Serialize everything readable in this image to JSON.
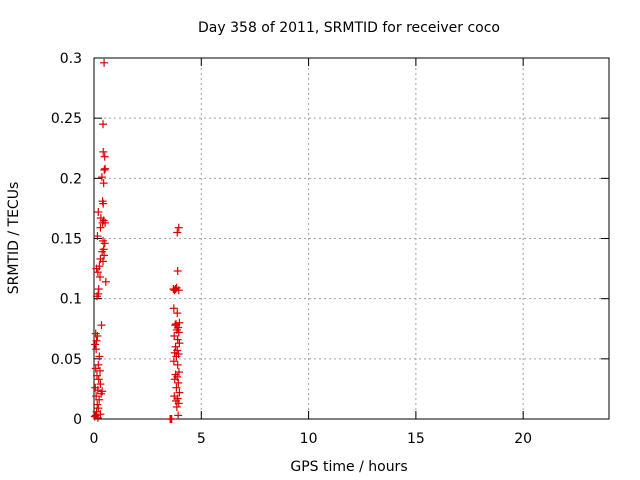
{
  "chart_data": {
    "type": "scatter",
    "title": "Day 358 of 2011, SRMTID for receiver coco",
    "xlabel": "GPS time / hours",
    "ylabel": "SRMTID / TECUs",
    "xlim": [
      0,
      24
    ],
    "ylim": [
      0,
      0.3
    ],
    "xticks": [
      0,
      5,
      10,
      15,
      20
    ],
    "xtick_labels": [
      "0",
      "5",
      "10",
      "15",
      "20"
    ],
    "yticks": [
      0,
      0.05,
      0.1,
      0.15,
      0.2,
      0.25,
      0.3
    ],
    "ytick_labels": [
      "0",
      "0.05",
      "0.1",
      "0.15",
      "0.2",
      "0.25",
      "0.3"
    ],
    "grid": true,
    "marker": "+",
    "color": "#dd0000",
    "series": [
      {
        "name": "SRMTID",
        "points": [
          [
            0.47,
            0.296
          ],
          [
            0.42,
            0.245
          ],
          [
            0.43,
            0.222
          ],
          [
            0.5,
            0.218
          ],
          [
            0.52,
            0.208
          ],
          [
            0.48,
            0.207
          ],
          [
            0.37,
            0.201
          ],
          [
            0.45,
            0.196
          ],
          [
            0.4,
            0.181
          ],
          [
            0.43,
            0.179
          ],
          [
            0.2,
            0.172
          ],
          [
            0.32,
            0.167
          ],
          [
            0.45,
            0.165
          ],
          [
            0.52,
            0.163
          ],
          [
            0.4,
            0.163
          ],
          [
            0.3,
            0.159
          ],
          [
            0.16,
            0.152
          ],
          [
            0.42,
            0.148
          ],
          [
            0.5,
            0.146
          ],
          [
            0.45,
            0.141
          ],
          [
            0.38,
            0.139
          ],
          [
            0.47,
            0.136
          ],
          [
            0.3,
            0.133
          ],
          [
            0.42,
            0.131
          ],
          [
            0.25,
            0.127
          ],
          [
            0.12,
            0.125
          ],
          [
            0.18,
            0.122
          ],
          [
            0.28,
            0.118
          ],
          [
            0.55,
            0.114
          ],
          [
            0.22,
            0.108
          ],
          [
            0.2,
            0.104
          ],
          [
            0.14,
            0.102
          ],
          [
            0.35,
            0.078
          ],
          [
            0.08,
            0.071
          ],
          [
            0.16,
            0.069
          ],
          [
            0.12,
            0.065
          ],
          [
            0.05,
            0.062
          ],
          [
            0.1,
            0.058
          ],
          [
            0.25,
            0.052
          ],
          [
            0.2,
            0.045
          ],
          [
            0.08,
            0.042
          ],
          [
            0.28,
            0.04
          ],
          [
            0.14,
            0.036
          ],
          [
            0.22,
            0.033
          ],
          [
            0.3,
            0.029
          ],
          [
            0.06,
            0.026
          ],
          [
            0.18,
            0.024
          ],
          [
            0.38,
            0.023
          ],
          [
            0.33,
            0.021
          ],
          [
            0.1,
            0.019
          ],
          [
            0.24,
            0.016
          ],
          [
            0.15,
            0.012
          ],
          [
            0.2,
            0.009
          ],
          [
            0.12,
            0.006
          ],
          [
            0.3,
            0.004
          ],
          [
            0.08,
            0.003
          ],
          [
            0.18,
            0.001
          ],
          [
            0.04,
            0.002
          ],
          [
            3.95,
            0.159
          ],
          [
            3.88,
            0.155
          ],
          [
            3.9,
            0.123
          ],
          [
            3.7,
            0.108
          ],
          [
            3.75,
            0.107
          ],
          [
            3.85,
            0.109
          ],
          [
            3.95,
            0.107
          ],
          [
            3.8,
            0.108
          ],
          [
            3.72,
            0.092
          ],
          [
            3.88,
            0.088
          ],
          [
            3.98,
            0.08
          ],
          [
            3.82,
            0.079
          ],
          [
            3.78,
            0.078
          ],
          [
            3.92,
            0.076
          ],
          [
            3.86,
            0.074
          ],
          [
            3.95,
            0.072
          ],
          [
            3.74,
            0.069
          ],
          [
            3.9,
            0.066
          ],
          [
            3.98,
            0.063
          ],
          [
            3.8,
            0.06
          ],
          [
            3.88,
            0.057
          ],
          [
            3.76,
            0.055
          ],
          [
            3.94,
            0.054
          ],
          [
            3.84,
            0.052
          ],
          [
            3.72,
            0.048
          ],
          [
            3.9,
            0.045
          ],
          [
            3.96,
            0.039
          ],
          [
            3.8,
            0.037
          ],
          [
            3.88,
            0.035
          ],
          [
            3.76,
            0.033
          ],
          [
            3.93,
            0.03
          ],
          [
            3.84,
            0.026
          ],
          [
            3.98,
            0.022
          ],
          [
            3.74,
            0.019
          ],
          [
            3.9,
            0.017
          ],
          [
            3.82,
            0.015
          ],
          [
            3.95,
            0.013
          ],
          [
            3.86,
            0.01
          ],
          [
            3.92,
            0.003
          ],
          [
            3.55,
            0.0
          ],
          [
            3.58,
            0.0
          ],
          [
            3.62,
            0.0
          ]
        ]
      }
    ]
  }
}
